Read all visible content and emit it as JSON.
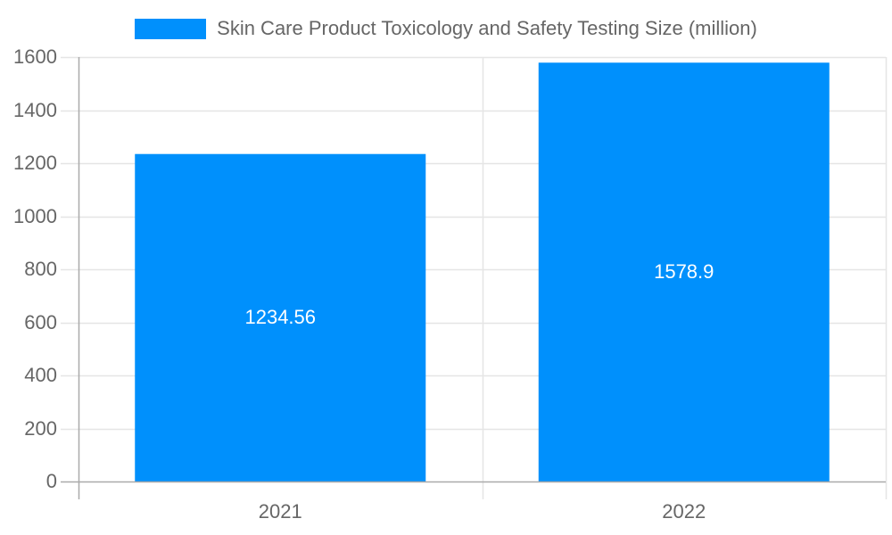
{
  "chart_data": {
    "type": "bar",
    "title": "",
    "xlabel": "",
    "ylabel": "",
    "categories": [
      "2021",
      "2022"
    ],
    "series": [
      {
        "name": "Skin Care Product Toxicology and Safety Testing Size (million)",
        "values": [
          1234.56,
          1578.9
        ],
        "color": "#0090FC"
      }
    ],
    "value_labels": [
      "1234.56",
      "1578.9"
    ],
    "ylim": [
      0,
      1600
    ],
    "yticks": [
      0,
      200,
      400,
      600,
      800,
      1000,
      1200,
      1400,
      1600
    ],
    "ytick_labels": [
      "0",
      "200",
      "400",
      "600",
      "800",
      "1000",
      "1200",
      "1400",
      "1600"
    ],
    "grid": true,
    "legend_position": "top"
  },
  "legend": {
    "label": "Skin Care Product Toxicology and Safety Testing Size (million)",
    "color": "#0090FC"
  },
  "colors": {
    "bar": "#0090FC",
    "grid": "#e5e5e5",
    "axis": "#aaaaaa",
    "text": "#666666"
  }
}
